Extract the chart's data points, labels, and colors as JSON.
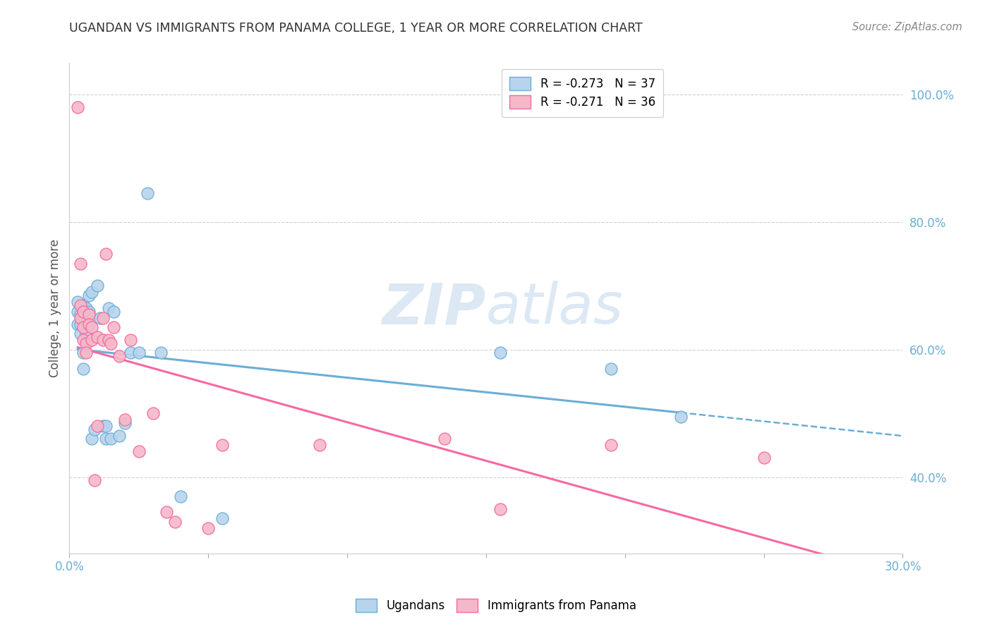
{
  "title": "UGANDAN VS IMMIGRANTS FROM PANAMA COLLEGE, 1 YEAR OR MORE CORRELATION CHART",
  "source": "Source: ZipAtlas.com",
  "ylabel": "College, 1 year or more",
  "xlim": [
    0.0,
    0.3
  ],
  "ylim": [
    0.28,
    1.05
  ],
  "yticks": [
    0.4,
    0.6,
    0.8,
    1.0
  ],
  "ytick_labels": [
    "40.0%",
    "60.0%",
    "80.0%",
    "100.0%"
  ],
  "xticks": [
    0.0,
    0.05,
    0.1,
    0.15,
    0.2,
    0.25,
    0.3
  ],
  "xtick_labels": [
    "0.0%",
    "",
    "",
    "",
    "",
    "",
    "30.0%"
  ],
  "ugandan_x": [
    0.003,
    0.003,
    0.003,
    0.004,
    0.004,
    0.004,
    0.005,
    0.005,
    0.005,
    0.005,
    0.006,
    0.006,
    0.006,
    0.007,
    0.007,
    0.008,
    0.008,
    0.009,
    0.01,
    0.011,
    0.012,
    0.013,
    0.013,
    0.014,
    0.015,
    0.016,
    0.018,
    0.02,
    0.022,
    0.025,
    0.028,
    0.033,
    0.04,
    0.055,
    0.155,
    0.195,
    0.22
  ],
  "ugandan_y": [
    0.64,
    0.66,
    0.675,
    0.625,
    0.64,
    0.655,
    0.66,
    0.67,
    0.595,
    0.57,
    0.665,
    0.65,
    0.625,
    0.685,
    0.66,
    0.69,
    0.46,
    0.475,
    0.7,
    0.65,
    0.48,
    0.48,
    0.46,
    0.665,
    0.46,
    0.66,
    0.465,
    0.485,
    0.595,
    0.595,
    0.845,
    0.595,
    0.37,
    0.335,
    0.595,
    0.57,
    0.495
  ],
  "panama_x": [
    0.003,
    0.004,
    0.004,
    0.004,
    0.005,
    0.005,
    0.005,
    0.006,
    0.006,
    0.007,
    0.007,
    0.008,
    0.008,
    0.009,
    0.01,
    0.01,
    0.012,
    0.012,
    0.013,
    0.014,
    0.015,
    0.016,
    0.018,
    0.02,
    0.022,
    0.025,
    0.03,
    0.035,
    0.038,
    0.05,
    0.055,
    0.09,
    0.135,
    0.155,
    0.195,
    0.25
  ],
  "panama_y": [
    0.98,
    0.735,
    0.67,
    0.65,
    0.66,
    0.635,
    0.615,
    0.61,
    0.595,
    0.655,
    0.64,
    0.635,
    0.615,
    0.395,
    0.62,
    0.48,
    0.65,
    0.615,
    0.75,
    0.615,
    0.61,
    0.635,
    0.59,
    0.49,
    0.615,
    0.44,
    0.5,
    0.345,
    0.33,
    0.32,
    0.45,
    0.45,
    0.46,
    0.35,
    0.45,
    0.43
  ],
  "ugandan_color": "#b8d4ed",
  "panama_color": "#f5b8c8",
  "ugandan_edge_color": "#6baed6",
  "panama_edge_color": "#f768a1",
  "ugandan_line_color": "#6baed6",
  "panama_line_color": "#f768a1",
  "grid_color": "#d0d0d0",
  "axis_color": "#6baed6",
  "title_color": "#333333",
  "background_color": "#ffffff",
  "watermark_zip": "ZIP",
  "watermark_atlas": "atlas",
  "watermark_color": "#dce8f4",
  "legend_label_1": "R = -0.273   N = 37",
  "legend_label_2": "R = -0.271   N = 36",
  "bottom_legend_1": "Ugandans",
  "bottom_legend_2": "Immigrants from Panama"
}
